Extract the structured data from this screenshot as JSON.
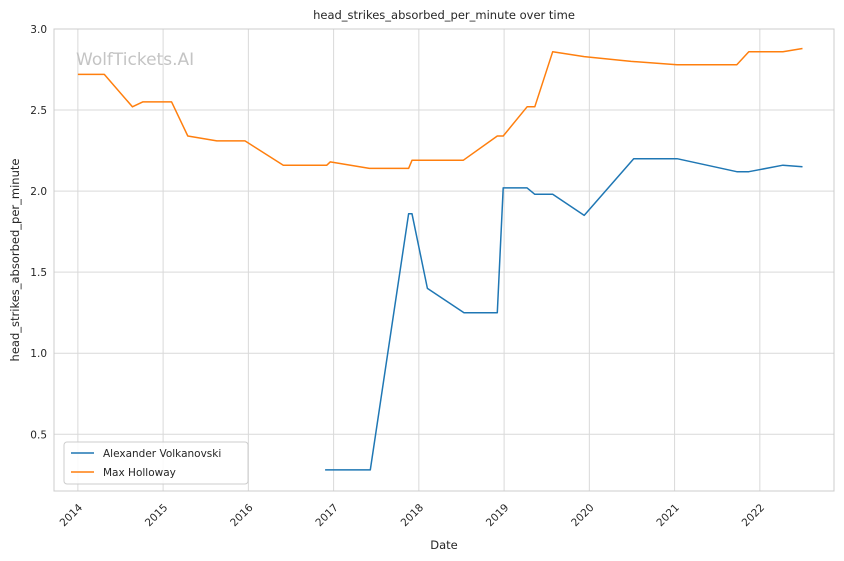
{
  "chart_data": {
    "type": "line",
    "title": "head_strikes_absorbed_per_minute over time",
    "xlabel": "Date",
    "ylabel": "head_strikes_absorbed_per_minute",
    "watermark": "WolfTickets.AI",
    "xlim": [
      2013.72,
      2022.87
    ],
    "ylim": [
      0.15,
      3.0
    ],
    "x_ticks": [
      2014,
      2015,
      2016,
      2017,
      2018,
      2019,
      2020,
      2021,
      2022
    ],
    "x_tick_labels": [
      "2014",
      "2015",
      "2016",
      "2017",
      "2018",
      "2019",
      "2020",
      "2021",
      "2022"
    ],
    "y_ticks": [
      0.5,
      1.0,
      1.5,
      2.0,
      2.5,
      3.0
    ],
    "y_tick_labels": [
      "0.5",
      "1.0",
      "1.5",
      "2.0",
      "2.5",
      "3.0"
    ],
    "grid": true,
    "legend_position": "bottom-left",
    "series": [
      {
        "name": "Alexander Volkanovski",
        "color": "#1f77b4",
        "x": [
          2016.9,
          2017.43,
          2017.88,
          2017.92,
          2018.1,
          2018.53,
          2018.92,
          2018.99,
          2019.27,
          2019.36,
          2019.57,
          2019.94,
          2020.52,
          2021.03,
          2021.73,
          2021.87,
          2022.27,
          2022.5
        ],
        "y": [
          0.28,
          0.28,
          1.86,
          1.86,
          1.4,
          1.25,
          1.25,
          2.02,
          2.02,
          1.98,
          1.98,
          1.85,
          2.2,
          2.2,
          2.12,
          2.12,
          2.16,
          2.15
        ]
      },
      {
        "name": "Max Holloway",
        "color": "#ff7f0e",
        "x": [
          2014.0,
          2014.31,
          2014.64,
          2014.76,
          2015.1,
          2015.29,
          2015.63,
          2015.96,
          2016.41,
          2016.92,
          2016.96,
          2017.42,
          2017.88,
          2017.92,
          2018.52,
          2018.92,
          2018.99,
          2019.27,
          2019.36,
          2019.57,
          2019.94,
          2020.49,
          2021.03,
          2021.73,
          2021.87,
          2022.27,
          2022.5
        ],
        "y": [
          2.72,
          2.72,
          2.52,
          2.55,
          2.55,
          2.34,
          2.31,
          2.31,
          2.16,
          2.16,
          2.18,
          2.14,
          2.14,
          2.19,
          2.19,
          2.34,
          2.34,
          2.52,
          2.52,
          2.86,
          2.83,
          2.8,
          2.78,
          2.78,
          2.86,
          2.86,
          2.88
        ]
      }
    ]
  }
}
